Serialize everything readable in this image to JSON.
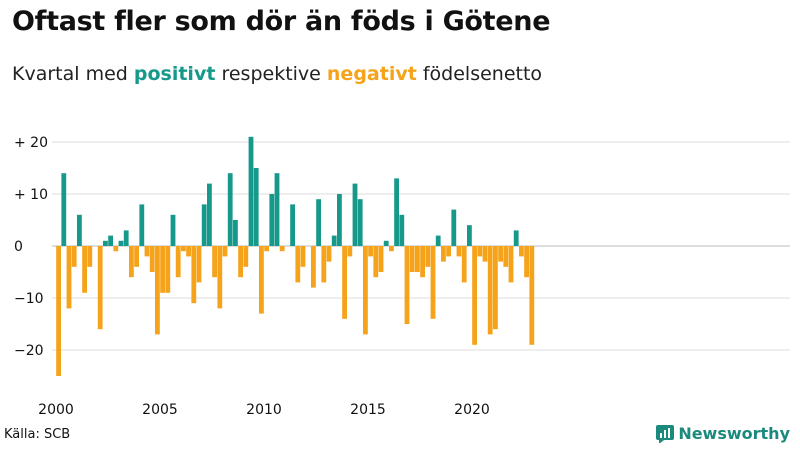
{
  "header": {
    "title": "Oftast fler som dör än föds i Götene",
    "subtitle_pre": "Kvartal med ",
    "subtitle_pos": "positivt",
    "subtitle_mid": " respektive ",
    "subtitle_neg": "negativt",
    "subtitle_post": " födelsenetto"
  },
  "footer": {
    "source": "Källa: SCB",
    "brand": "Newsworthy"
  },
  "colors": {
    "positive": "#16998a",
    "negative": "#f5a31a",
    "grid": "#dddddd",
    "zero": "#bbbbbb"
  },
  "chart_data": {
    "type": "bar",
    "title": "Oftast fler som dör än föds i Götene",
    "subtitle": "Kvartal med positivt respektive negativt födelsenetto",
    "xlabel": "",
    "ylabel": "",
    "ylim": [
      -25,
      23
    ],
    "start_year": 2000,
    "periods_per_year": 4,
    "yticks": [
      20,
      10,
      0,
      -10,
      -20
    ],
    "ytick_labels": [
      "+ 20",
      "+ 10",
      "0",
      "−10",
      "−20"
    ],
    "xticks": [
      2000,
      2005,
      2010,
      2015,
      2020
    ],
    "xtick_labels": [
      "2000",
      "2005",
      "2010",
      "2015",
      "2020"
    ],
    "values": [
      -25,
      14,
      -12,
      -4,
      6,
      -9,
      -4,
      0,
      -16,
      1,
      2,
      -1,
      1,
      3,
      -6,
      -4,
      8,
      -2,
      -5,
      -17,
      -9,
      -9,
      6,
      -6,
      -1,
      -2,
      -11,
      -7,
      8,
      12,
      -6,
      -12,
      -2,
      14,
      5,
      -6,
      -4,
      21,
      15,
      -13,
      -1,
      10,
      14,
      -1,
      0,
      8,
      -7,
      -4,
      0,
      -8,
      9,
      -7,
      -3,
      2,
      10,
      -14,
      -2,
      12,
      9,
      -17,
      -2,
      -6,
      -5,
      1,
      -1,
      13,
      6,
      -15,
      -5,
      -5,
      -6,
      -4,
      -14,
      2,
      -3,
      -2,
      7,
      -2,
      -7,
      4,
      -19,
      -2,
      -3,
      -17,
      -16,
      -3,
      -4,
      -7,
      3,
      -2,
      -6,
      -19
    ]
  }
}
